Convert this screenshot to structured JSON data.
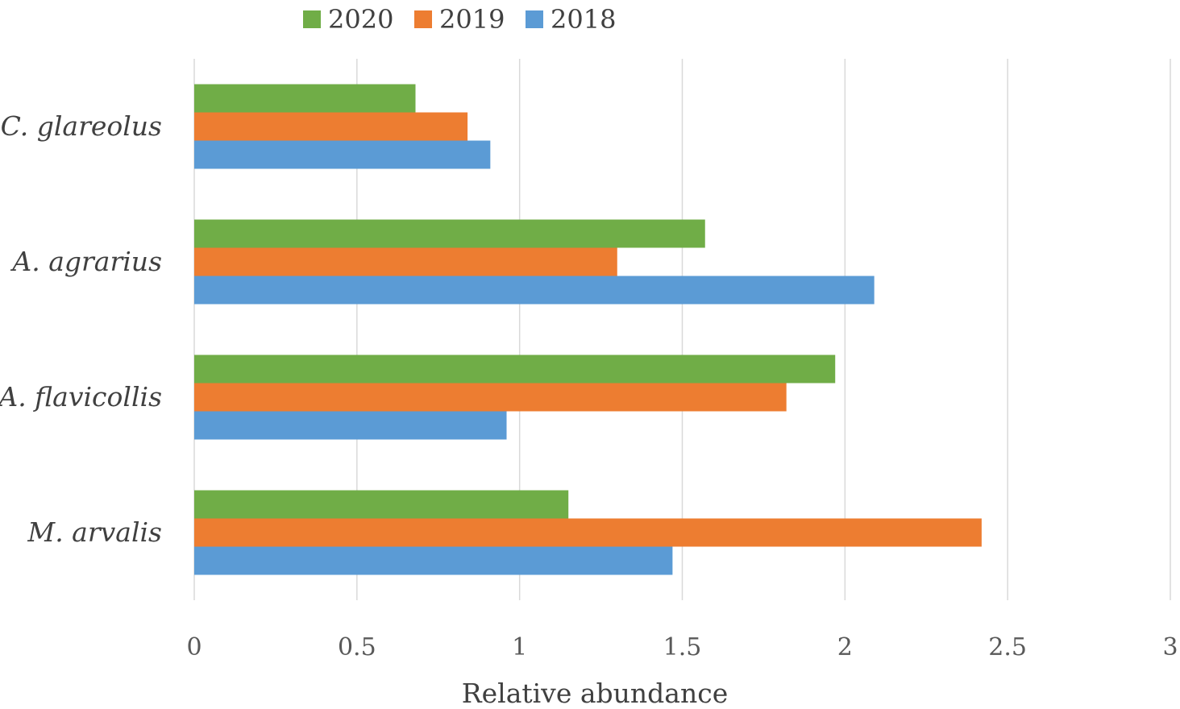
{
  "chart_data": {
    "type": "bar",
    "orientation": "horizontal",
    "categories": [
      "C. glareolus",
      "A. agrarius",
      "A. flavicollis",
      "M. arvalis"
    ],
    "series": [
      {
        "name": "2020",
        "color": "#70AD47",
        "values": [
          0.68,
          1.57,
          1.97,
          1.15
        ]
      },
      {
        "name": "2019",
        "color": "#ED7D31",
        "values": [
          0.84,
          1.3,
          1.82,
          2.42
        ]
      },
      {
        "name": "2018",
        "color": "#5B9BD5",
        "values": [
          0.91,
          2.09,
          0.96,
          1.47
        ]
      }
    ],
    "xlabel": "Relative abundance",
    "ylabel": "",
    "xlim": [
      0,
      3
    ],
    "xticks": [
      "0",
      "0.5",
      "1",
      "1.5",
      "2",
      "2.5",
      "3"
    ],
    "grid": true,
    "legend_position": "top"
  }
}
